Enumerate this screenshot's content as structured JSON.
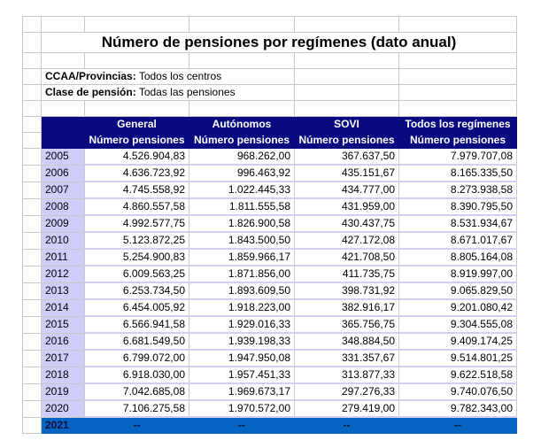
{
  "title": "Número de pensiones por regímenes (dato anual)",
  "filters": [
    {
      "label": "CCAA/Provincias",
      "value": "Todos los centros"
    },
    {
      "label": "Clase de pensión",
      "value": "Todas las pensiones"
    }
  ],
  "colors": {
    "header_bg": "#0a0a80",
    "year_bg": "#cfcdfa",
    "last_row_bg": "#0563c1"
  },
  "columns": [
    {
      "group": "General",
      "sub": "Número pensiones"
    },
    {
      "group": "Autónomos",
      "sub": "Número pensiones"
    },
    {
      "group": "SOVI",
      "sub": "Número pensiones"
    },
    {
      "group": "Todos los regímenes",
      "sub": "Número pensiones"
    }
  ],
  "rows": [
    {
      "year": "2005",
      "values": [
        "4.526.904,83",
        "968.262,00",
        "367.637,50",
        "7.979.707,08"
      ]
    },
    {
      "year": "2006",
      "values": [
        "4.636.723,92",
        "996.463,92",
        "435.151,67",
        "8.165.335,50"
      ]
    },
    {
      "year": "2007",
      "values": [
        "4.745.558,92",
        "1.022.445,33",
        "434.777,00",
        "8.273.938,58"
      ]
    },
    {
      "year": "2008",
      "values": [
        "4.860.557,58",
        "1.811.555,58",
        "431.959,00",
        "8.390.795,50"
      ]
    },
    {
      "year": "2009",
      "values": [
        "4.992.577,75",
        "1.826.900,58",
        "430.437,75",
        "8.531.934,67"
      ]
    },
    {
      "year": "2010",
      "values": [
        "5.123.872,25",
        "1.843.500,50",
        "427.172,08",
        "8.671.017,67"
      ]
    },
    {
      "year": "2011",
      "values": [
        "5.254.900,83",
        "1.859.966,17",
        "421.708,50",
        "8.805.164,08"
      ]
    },
    {
      "year": "2012",
      "values": [
        "6.009.563,25",
        "1.871.856,00",
        "411.735,75",
        "8.919.997,00"
      ]
    },
    {
      "year": "2013",
      "values": [
        "6.253.734,50",
        "1.893.609,50",
        "398.731,92",
        "9.065.829,50"
      ]
    },
    {
      "year": "2014",
      "values": [
        "6.454.005,92",
        "1.918.223,00",
        "382.916,17",
        "9.201.080,42"
      ]
    },
    {
      "year": "2015",
      "values": [
        "6.566.941,58",
        "1.929.016,33",
        "365.756,75",
        "9.304.555,08"
      ]
    },
    {
      "year": "2016",
      "values": [
        "6.681.549,50",
        "1.939.198,33",
        "348.884,50",
        "9.409.174,25"
      ]
    },
    {
      "year": "2017",
      "values": [
        "6.799.072,00",
        "1.947.950,08",
        "331.357,67",
        "9.514.801,25"
      ]
    },
    {
      "year": "2018",
      "values": [
        "6.918.030,00",
        "1.957.451,33",
        "313.877,33",
        "9.622.518,58"
      ]
    },
    {
      "year": "2019",
      "values": [
        "7.042.685,08",
        "1.969.673,17",
        "297.276,33",
        "9.740.076,50"
      ]
    },
    {
      "year": "2020",
      "values": [
        "7.106.275,58",
        "1.970.572,00",
        "279.419,00",
        "9.782.343,00"
      ]
    }
  ],
  "last_row": {
    "year": "2021",
    "values": [
      "--",
      "--",
      "--",
      "--"
    ]
  }
}
